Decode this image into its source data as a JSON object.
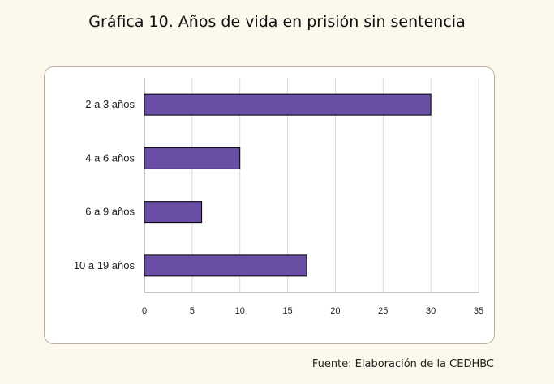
{
  "title": "Gráfica 10. Años de vida en prisión sin sentencia",
  "source": "Fuente: Elaboración de la CEDHBC",
  "chart_data": {
    "type": "bar",
    "orientation": "horizontal",
    "categories": [
      "2 a 3 años",
      "4 a 6 años",
      "6 a 9 años",
      "10 a 19 años"
    ],
    "values": [
      30,
      10,
      6,
      17
    ],
    "xlim": [
      0,
      35
    ],
    "xticks": [
      0,
      5,
      10,
      15,
      20,
      25,
      30,
      35
    ],
    "grid": true,
    "legend": "none",
    "bar_color": "#6a4ea6",
    "bar_edge_color": "#000000"
  }
}
